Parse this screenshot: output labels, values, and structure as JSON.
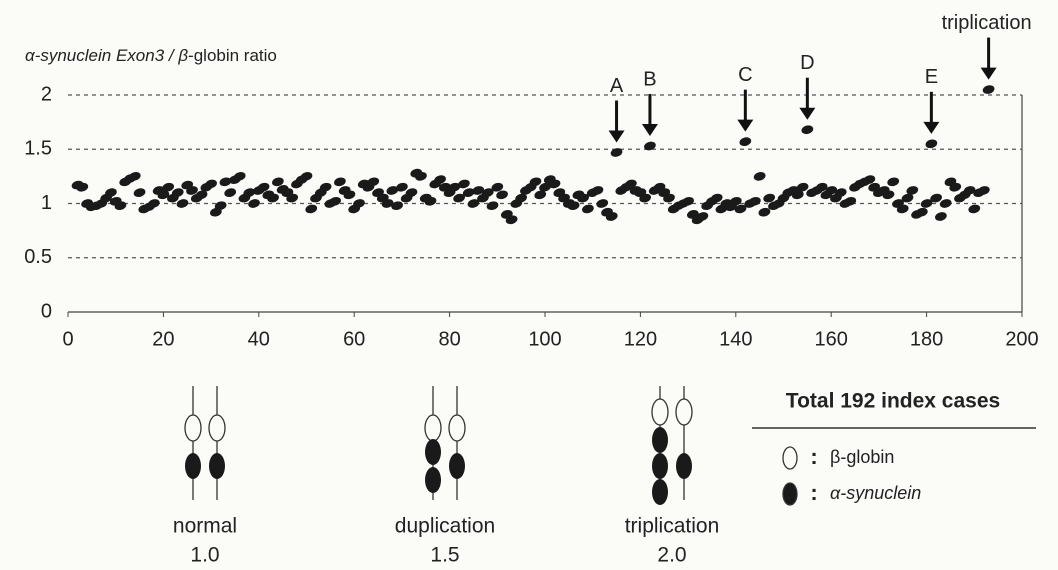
{
  "chart_data": {
    "type": "scatter",
    "y_label": {
      "parts": [
        "α-synuclein Exon3 / β",
        "-globin ratio"
      ],
      "italic": [
        true,
        false
      ]
    },
    "x": [
      2,
      3,
      4,
      5,
      6,
      7,
      8,
      9,
      10,
      11,
      12,
      13,
      14,
      15,
      16,
      17,
      18,
      19,
      20,
      21,
      22,
      23,
      24,
      25,
      26,
      27,
      28,
      29,
      30,
      31,
      32,
      33,
      34,
      35,
      36,
      37,
      38,
      39,
      40,
      41,
      42,
      43,
      44,
      45,
      46,
      47,
      48,
      49,
      50,
      51,
      52,
      53,
      54,
      55,
      56,
      57,
      58,
      59,
      60,
      61,
      62,
      63,
      64,
      65,
      66,
      67,
      68,
      69,
      70,
      71,
      72,
      73,
      74,
      75,
      76,
      77,
      78,
      79,
      80,
      81,
      82,
      83,
      84,
      85,
      86,
      87,
      88,
      89,
      90,
      91,
      92,
      93,
      94,
      95,
      96,
      97,
      98,
      99,
      100,
      101,
      102,
      103,
      104,
      105,
      106,
      107,
      108,
      109,
      110,
      111,
      112,
      113,
      114,
      115,
      116,
      117,
      118,
      119,
      120,
      121,
      122,
      123,
      124,
      125,
      126,
      127,
      128,
      129,
      130,
      131,
      132,
      133,
      134,
      135,
      136,
      137,
      138,
      139,
      140,
      141,
      142,
      143,
      144,
      145,
      146,
      147,
      148,
      149,
      150,
      151,
      152,
      153,
      154,
      155,
      156,
      157,
      158,
      159,
      160,
      161,
      162,
      163,
      164,
      165,
      166,
      167,
      168,
      169,
      170,
      171,
      172,
      173,
      174,
      175,
      176,
      177,
      178,
      179,
      180,
      181,
      182,
      183,
      184,
      185,
      186,
      187,
      188,
      189,
      190,
      191,
      192,
      193
    ],
    "values": [
      1.17,
      1.15,
      1.0,
      0.97,
      0.98,
      1.0,
      1.05,
      1.1,
      1.02,
      0.98,
      1.2,
      1.23,
      1.25,
      1.1,
      0.95,
      0.97,
      1.0,
      1.12,
      1.08,
      1.15,
      1.05,
      1.1,
      1.0,
      1.17,
      1.12,
      1.05,
      1.08,
      1.15,
      1.18,
      0.92,
      0.98,
      1.2,
      1.1,
      1.22,
      1.25,
      1.05,
      1.1,
      1.0,
      1.12,
      1.15,
      1.08,
      1.05,
      1.2,
      1.13,
      1.1,
      1.05,
      1.18,
      1.22,
      1.25,
      0.95,
      1.05,
      1.1,
      1.15,
      1.0,
      1.02,
      1.2,
      1.12,
      1.08,
      0.95,
      1.0,
      1.18,
      1.15,
      1.2,
      1.1,
      1.05,
      1.0,
      1.12,
      0.98,
      1.15,
      1.05,
      1.1,
      1.28,
      1.25,
      1.05,
      1.02,
      1.18,
      1.22,
      1.15,
      1.1,
      1.15,
      1.05,
      1.18,
      1.1,
      1.0,
      1.12,
      1.05,
      1.1,
      0.98,
      1.15,
      1.08,
      0.9,
      0.85,
      1.0,
      1.05,
      1.12,
      1.15,
      1.2,
      1.08,
      1.15,
      1.22,
      1.18,
      1.1,
      1.05,
      1.0,
      0.98,
      1.08,
      1.05,
      0.95,
      1.1,
      1.12,
      1.0,
      0.92,
      0.88,
      1.47,
      1.12,
      1.15,
      1.18,
      1.12,
      1.1,
      1.05,
      1.53,
      1.12,
      1.15,
      1.1,
      1.05,
      0.95,
      0.98,
      1.0,
      1.02,
      0.9,
      0.85,
      0.88,
      0.98,
      1.02,
      1.05,
      0.95,
      1.0,
      0.97,
      1.02,
      0.95,
      1.57,
      1.0,
      1.02,
      1.25,
      0.92,
      1.05,
      0.98,
      1.0,
      1.05,
      1.1,
      1.12,
      1.08,
      1.15,
      1.68,
      1.1,
      1.12,
      1.15,
      1.08,
      1.12,
      1.05,
      1.1,
      1.0,
      1.02,
      1.15,
      1.18,
      1.2,
      1.22,
      1.15,
      1.1,
      1.12,
      1.08,
      1.2,
      1.0,
      0.95,
      1.05,
      1.12,
      0.9,
      0.92,
      1.0,
      1.55,
      1.05,
      0.88,
      1.0,
      1.2,
      1.15,
      1.05,
      1.08,
      1.12,
      0.95,
      1.1,
      1.12,
      2.05
    ],
    "color": "#1a1a1a",
    "xlim": [
      0,
      200
    ],
    "xticks": [
      0,
      20,
      40,
      60,
      80,
      100,
      120,
      140,
      160,
      180,
      200
    ],
    "ylim": [
      0,
      2
    ],
    "yticks": [
      0,
      0.5,
      1,
      1.5,
      2
    ],
    "grid": true,
    "annotations": [
      {
        "text": "A",
        "x": 115,
        "y": 1.47
      },
      {
        "text": "B",
        "x": 122,
        "y": 1.53
      },
      {
        "text": "C",
        "x": 142,
        "y": 1.57
      },
      {
        "text": "D",
        "x": 155,
        "y": 1.68
      },
      {
        "text": "E",
        "x": 181,
        "y": 1.55
      },
      {
        "text": "triplication",
        "x": 193,
        "y": 2.05
      }
    ]
  },
  "diagram": {
    "items": [
      {
        "label": "normal",
        "ratio": "1.0"
      },
      {
        "label": "duplication",
        "ratio": "1.5"
      },
      {
        "label": "triplication",
        "ratio": "2.0"
      }
    ],
    "legend_title": "Total 192 index cases",
    "legend": [
      {
        "separator": ":",
        "text": "β-globin"
      },
      {
        "separator": ":",
        "text": "α-synuclein"
      }
    ]
  }
}
